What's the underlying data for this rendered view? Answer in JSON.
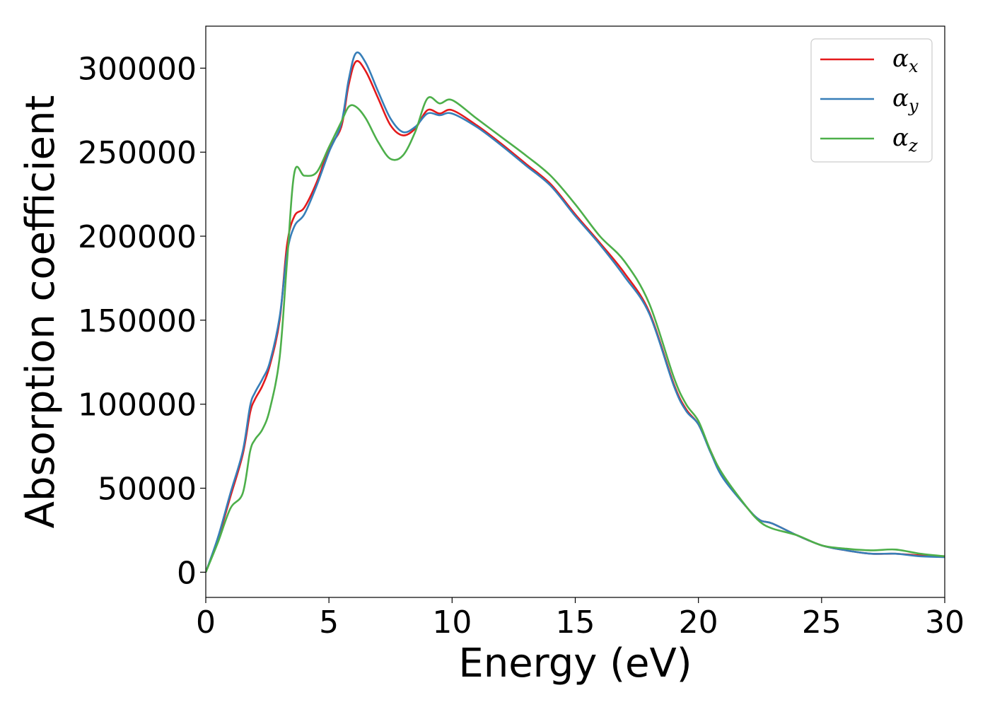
{
  "chart_data": {
    "type": "line",
    "title": "",
    "xlabel": "Energy (eV)",
    "ylabel": "Absorption coefficient",
    "xlim": [
      0,
      30
    ],
    "ylim": [
      -15000,
      325000
    ],
    "xticks": [
      0,
      5,
      10,
      15,
      20,
      25,
      30
    ],
    "yticks": [
      0,
      50000,
      100000,
      150000,
      200000,
      250000,
      300000
    ],
    "grid": false,
    "legend": {
      "placement": "top-right"
    },
    "series": [
      {
        "name": "α",
        "subscript": "x",
        "color": "#e41a1c",
        "x": [
          0,
          0.5,
          1,
          1.5,
          1.8,
          2,
          2.3,
          2.6,
          3,
          3.3,
          3.6,
          4,
          4.5,
          5,
          5.5,
          5.8,
          6.1,
          6.5,
          7,
          7.5,
          8,
          8.5,
          9,
          9.5,
          10,
          11,
          12,
          13,
          14,
          15,
          16,
          17,
          18,
          19,
          19.5,
          20,
          20.5,
          21,
          22,
          22.5,
          23,
          24,
          25,
          26,
          27,
          28,
          29,
          30
        ],
        "y": [
          0,
          20000,
          45000,
          70000,
          95000,
          103000,
          111000,
          123000,
          150000,
          195000,
          212000,
          217000,
          232000,
          252000,
          265000,
          290000,
          304000,
          298000,
          282000,
          266000,
          260000,
          264000,
          275000,
          273000,
          275000,
          266000,
          255000,
          243000,
          231000,
          213000,
          196000,
          178000,
          155000,
          112000,
          97000,
          88000,
          72000,
          57000,
          38000,
          31000,
          29000,
          22000,
          16000,
          13000,
          11000,
          11000,
          10000,
          9500
        ]
      },
      {
        "name": "α",
        "subscript": "y",
        "color": "#377eb8",
        "x": [
          0,
          0.5,
          1,
          1.5,
          1.8,
          2,
          2.3,
          2.6,
          3,
          3.3,
          3.6,
          4,
          4.5,
          5,
          5.5,
          5.8,
          6.1,
          6.5,
          7,
          7.5,
          8,
          8.5,
          9,
          9.5,
          10,
          11,
          12,
          13,
          14,
          15,
          16,
          17,
          18,
          19,
          19.5,
          20,
          20.5,
          21,
          22,
          22.5,
          23,
          24,
          25,
          26,
          27,
          28,
          29,
          30
        ],
        "y": [
          0,
          21000,
          47000,
          72000,
          99000,
          107000,
          115000,
          125000,
          152000,
          190000,
          206000,
          213000,
          230000,
          250000,
          267000,
          293000,
          309000,
          303000,
          286000,
          270000,
          262000,
          265000,
          273000,
          272000,
          273000,
          265000,
          254000,
          242000,
          230000,
          212000,
          195000,
          176000,
          154000,
          111000,
          96000,
          88000,
          71000,
          56000,
          38000,
          31000,
          29000,
          22000,
          16000,
          13000,
          11000,
          11000,
          9500,
          9000
        ]
      },
      {
        "name": "α",
        "subscript": "z",
        "color": "#4daf4a",
        "x": [
          0,
          0.5,
          1,
          1.5,
          1.8,
          2,
          2.3,
          2.6,
          3,
          3.3,
          3.6,
          4,
          4.5,
          5,
          5.5,
          5.8,
          6.1,
          6.5,
          7,
          7.5,
          8,
          8.5,
          9,
          9.5,
          10,
          11,
          12,
          13,
          14,
          15,
          16,
          17,
          18,
          19,
          19.5,
          20,
          20.5,
          21,
          22,
          22.5,
          23,
          24,
          25,
          26,
          27,
          28,
          29,
          30
        ],
        "y": [
          0,
          18000,
          38000,
          47000,
          72000,
          79000,
          85000,
          97000,
          128000,
          185000,
          238000,
          236000,
          238000,
          253000,
          268000,
          277000,
          277000,
          270000,
          256000,
          246000,
          248000,
          262000,
          282000,
          279000,
          281000,
          270000,
          259000,
          248000,
          236000,
          219000,
          200000,
          185000,
          160000,
          116000,
          100000,
          90000,
          72000,
          58000,
          38000,
          30000,
          26000,
          22000,
          16000,
          14000,
          13000,
          13500,
          11000,
          9500
        ]
      }
    ]
  }
}
